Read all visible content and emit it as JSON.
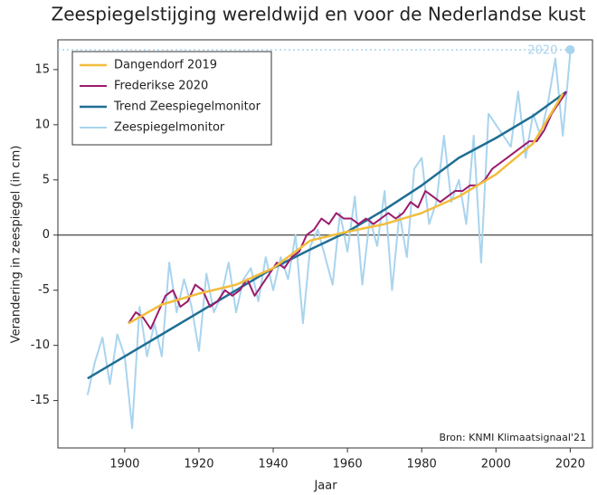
{
  "chart_data": {
    "type": "line",
    "title": "Zeespiegelstijging wereldwijd en voor de Nederlandse kust",
    "xlabel": "Jaar",
    "ylabel": "Verandering in zeespiegel (in cm)",
    "source": "Bron: KNMI Klimaatsignaal'21",
    "xlim": [
      1882,
      2026
    ],
    "ylim": [
      -19.3,
      17.7
    ],
    "xticks": [
      1900,
      1920,
      1940,
      1960,
      1980,
      2000,
      2020
    ],
    "yticks": [
      -15,
      -10,
      -5,
      0,
      5,
      10,
      15
    ],
    "legend": "upper left",
    "highlight": {
      "label": "2020",
      "x": 2020,
      "y": 16.8,
      "color": "#a9d4ee"
    },
    "series": [
      {
        "name": "Dangendorf 2019",
        "color": "#f2bd3c",
        "width": 2.5,
        "x": [
          1901,
          1910,
          1920,
          1930,
          1940,
          1950,
          1960,
          1970,
          1980,
          1990,
          2000,
          2010,
          2018
        ],
        "values": [
          -8,
          -6.3,
          -5.3,
          -4.5,
          -3,
          -0.5,
          0.3,
          1,
          2,
          3.5,
          5.5,
          8.3,
          12.8
        ]
      },
      {
        "name": "Frederikse 2020",
        "color": "#9c1a6b",
        "width": 2,
        "x": [
          1901,
          1903,
          1905,
          1907,
          1909,
          1911,
          1913,
          1915,
          1917,
          1919,
          1921,
          1923,
          1925,
          1927,
          1929,
          1931,
          1933,
          1935,
          1937,
          1939,
          1941,
          1943,
          1945,
          1947,
          1949,
          1951,
          1953,
          1955,
          1957,
          1959,
          1961,
          1963,
          1965,
          1967,
          1969,
          1971,
          1973,
          1975,
          1977,
          1979,
          1981,
          1983,
          1985,
          1987,
          1989,
          1991,
          1993,
          1995,
          1997,
          1999,
          2001,
          2003,
          2005,
          2007,
          2009,
          2011,
          2013,
          2015,
          2017,
          2019
        ],
        "values": [
          -8,
          -7,
          -7.5,
          -8.5,
          -7,
          -5.5,
          -5,
          -6.5,
          -6,
          -4.5,
          -5,
          -6.5,
          -6,
          -5,
          -5.5,
          -5,
          -4,
          -5.5,
          -4.5,
          -3.5,
          -2.5,
          -3,
          -2,
          -1.5,
          0,
          0.5,
          1.5,
          1,
          2,
          1.5,
          1.5,
          1,
          1.5,
          1,
          1.5,
          2,
          1.5,
          2,
          3,
          2.5,
          4,
          3.5,
          3,
          3.5,
          4,
          4,
          4.5,
          4.5,
          5,
          6,
          6.5,
          7,
          7.5,
          8,
          8.5,
          8.5,
          9.5,
          11,
          12,
          13
        ]
      },
      {
        "name": "Trend Zeespiegelmonitor",
        "color": "#1f6e94",
        "width": 2.5,
        "x": [
          1890,
          1900,
          1910,
          1920,
          1930,
          1940,
          1950,
          1960,
          1970,
          1980,
          1990,
          2000,
          2010,
          2019
        ],
        "values": [
          -13,
          -11,
          -9,
          -7,
          -5,
          -3,
          -1.3,
          0.3,
          2.3,
          4.5,
          7,
          8.8,
          10.8,
          13
        ]
      },
      {
        "name": "Zeespiegelmonitor",
        "color": "#a9d4ee",
        "width": 2,
        "x": [
          1890,
          1892,
          1894,
          1896,
          1898,
          1900,
          1902,
          1904,
          1906,
          1908,
          1910,
          1912,
          1914,
          1916,
          1918,
          1920,
          1922,
          1924,
          1926,
          1928,
          1930,
          1932,
          1934,
          1936,
          1938,
          1940,
          1942,
          1944,
          1946,
          1948,
          1950,
          1952,
          1954,
          1956,
          1958,
          1960,
          1962,
          1964,
          1966,
          1968,
          1970,
          1972,
          1974,
          1976,
          1978,
          1980,
          1982,
          1984,
          1986,
          1988,
          1990,
          1992,
          1994,
          1996,
          1998,
          2000,
          2002,
          2004,
          2006,
          2008,
          2010,
          2012,
          2014,
          2016,
          2018,
          2020
        ],
        "values": [
          -14.5,
          -11.5,
          -9.3,
          -13.5,
          -9,
          -11,
          -17.5,
          -6.5,
          -11,
          -8,
          -11,
          -2.5,
          -7,
          -4,
          -6.5,
          -10.5,
          -3.5,
          -7,
          -5.5,
          -2.5,
          -7,
          -4,
          -3,
          -6,
          -2,
          -5,
          -2,
          -4,
          0,
          -8,
          -1,
          0.5,
          -2,
          -4.5,
          2,
          -1.5,
          3.5,
          -4.5,
          1.5,
          -1,
          4,
          -5,
          2,
          -2,
          6,
          7,
          1,
          3,
          9,
          3,
          5,
          1,
          9,
          -2.5,
          11,
          10,
          9,
          8,
          13,
          7,
          11,
          9,
          12,
          16,
          9,
          16.5
        ]
      }
    ]
  }
}
